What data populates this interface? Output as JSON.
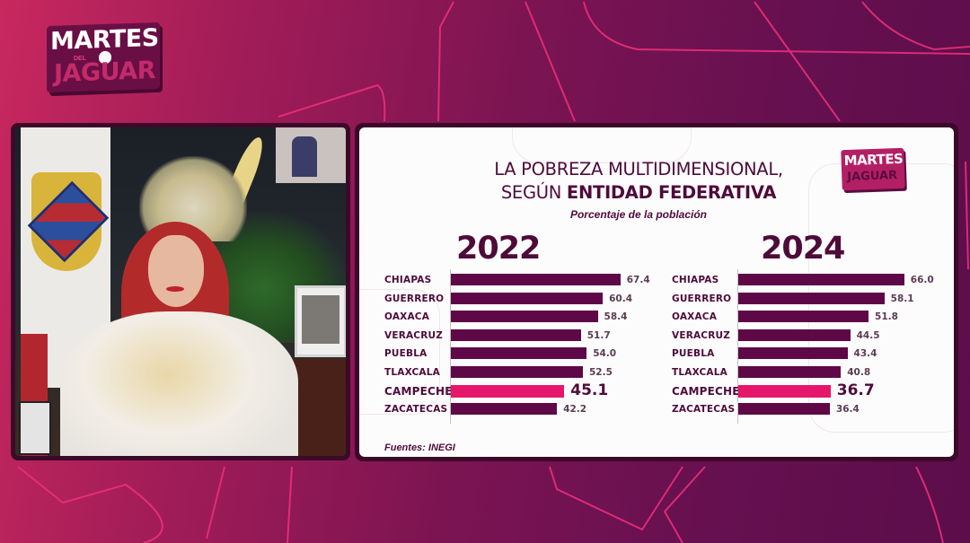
{
  "show_logo": {
    "line1": "MARTES",
    "line2_small": "DEL",
    "line3": "JAGUAR"
  },
  "video": {
    "description": "speaker-video-feed"
  },
  "chart_panel": {
    "title_line1": "LA POBREZA MULTIDIMENSIONAL,",
    "title_line2_regular": "SEGÚN ",
    "title_line2_bold": "ENTIDAD FEDERATIVA",
    "subtitle": "Porcentaje de la población",
    "mini_logo_line1": "MARTES",
    "mini_logo_line2": "JAGUAR",
    "source": "Fuentes: INEGI"
  },
  "colors": {
    "bar": "#5e0848",
    "highlight_bar": "#e6176a",
    "text": "#4e0b3a",
    "background_gradient_start": "#c8285e",
    "background_gradient_end": "#5c0d4a"
  },
  "chart_data": [
    {
      "type": "bar",
      "orientation": "horizontal",
      "title": "2022",
      "categories": [
        "CHIAPAS",
        "GUERRERO",
        "OAXACA",
        "VERACRUZ",
        "PUEBLA",
        "TLAXCALA",
        "CAMPECHE",
        "ZACATECAS"
      ],
      "values": [
        67.4,
        60.4,
        58.4,
        51.7,
        54.0,
        52.5,
        45.1,
        42.2
      ],
      "labels": [
        "67.4",
        "60.4",
        "58.4",
        "51.7",
        "54.0",
        "52.5",
        "45.1",
        "42.2"
      ],
      "highlight": "CAMPECHE",
      "xlabel": "",
      "ylabel": "",
      "grid": false
    },
    {
      "type": "bar",
      "orientation": "horizontal",
      "title": "2024",
      "categories": [
        "CHIAPAS",
        "GUERRERO",
        "OAXACA",
        "VERACRUZ",
        "PUEBLA",
        "TLAXCALA",
        "CAMPECHE",
        "ZACATECAS"
      ],
      "values": [
        66.0,
        58.1,
        51.8,
        44.5,
        43.4,
        40.8,
        36.7,
        36.4
      ],
      "labels": [
        "66.0",
        "58.1",
        "51.8",
        "44.5",
        "43.4",
        "40.8",
        "36.7",
        "36.4"
      ],
      "highlight": "CAMPECHE",
      "xlabel": "",
      "ylabel": "",
      "grid": false
    }
  ]
}
